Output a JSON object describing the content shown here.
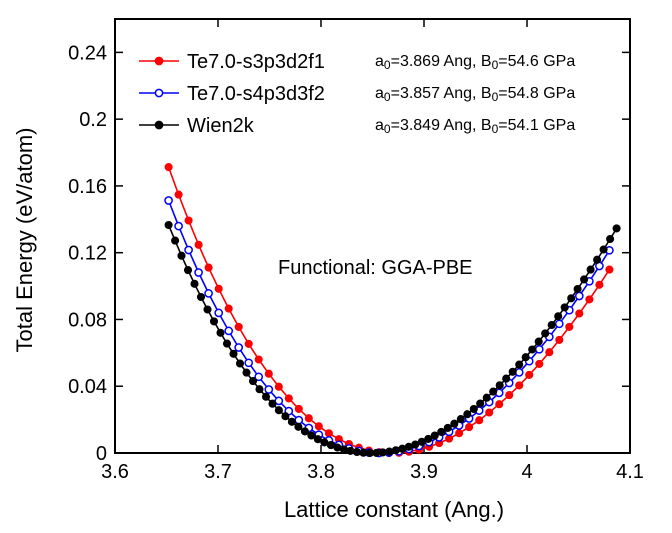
{
  "chart_data": {
    "type": "line",
    "title": "",
    "xlabel": "Lattice constant (Ang.)",
    "ylabel": "Total Energy (eV/atom)",
    "xlim": [
      3.6,
      4.1
    ],
    "ylim": [
      0,
      0.26
    ],
    "xticks": [
      "3.6",
      "3.7",
      "3.8",
      "3.9",
      "4",
      "4.1"
    ],
    "yticks": [
      "0",
      "0.04",
      "0.08",
      "0.12",
      "0.16",
      "0.2",
      "0.24"
    ],
    "grid": false,
    "legend_position": "top-left",
    "annotation": "Functional: GGA-PBE",
    "series": [
      {
        "name": "Te7.0-s3p3d2f1",
        "params": {
          "a_label": "a",
          "a_sub": "0",
          "a_value": "=3.869 Ang, ",
          "b_label": "B",
          "b_sub": "0",
          "b_value": "=54.6 GPa"
        },
        "color": "#ff0000",
        "marker": "filled",
        "a0": 3.869,
        "B0_GPa": 54.6,
        "x_start": 3.652,
        "x_end": 4.08,
        "n_points": 45
      },
      {
        "name": "Te7.0-s4p3d3f2",
        "params": {
          "a_label": "a",
          "a_sub": "0",
          "a_value": "=3.857 Ang, ",
          "b_label": "B",
          "b_sub": "0",
          "b_value": "=54.8 GPa"
        },
        "color": "#0000ff",
        "marker": "open",
        "a0": 3.857,
        "B0_GPa": 54.8,
        "x_start": 3.652,
        "x_end": 4.08,
        "n_points": 45
      },
      {
        "name": "Wien2k",
        "params": {
          "a_label": "a",
          "a_sub": "0",
          "a_value": "=3.849 Ang, ",
          "b_label": "B",
          "b_sub": "0",
          "b_value": "=54.1 GPa"
        },
        "color": "#000000",
        "marker": "filled",
        "a0": 3.849,
        "B0_GPa": 54.1,
        "x_start": 3.652,
        "x_end": 4.087,
        "n_points": 70
      }
    ]
  }
}
